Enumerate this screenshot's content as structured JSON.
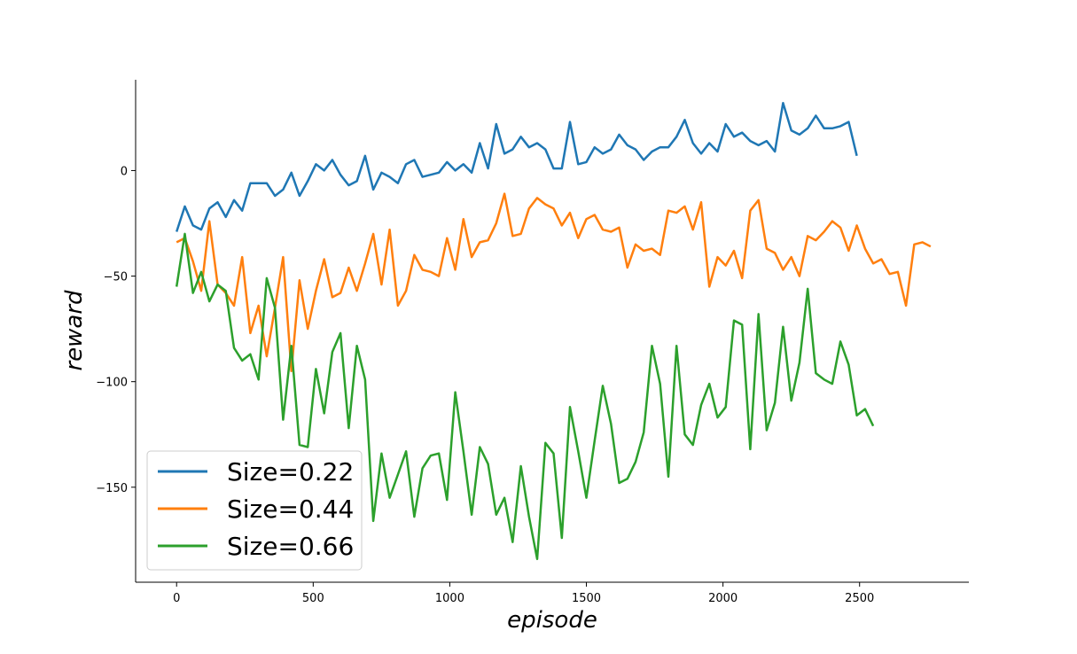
{
  "chart_data": {
    "type": "line",
    "xlabel": "episode",
    "ylabel": "reward",
    "xlim": [
      -150,
      2900
    ],
    "ylim": [
      -195,
      43
    ],
    "xticks": [
      0,
      500,
      1000,
      1500,
      2000,
      2500
    ],
    "yticks": [
      -150,
      -100,
      -50,
      0
    ],
    "grid": false,
    "legend_position": "lower-left",
    "series": [
      {
        "name": "Size=0.22",
        "color": "#1f77b4",
        "x": [
          0,
          30,
          60,
          90,
          120,
          150,
          180,
          210,
          240,
          270,
          300,
          330,
          360,
          390,
          420,
          450,
          480,
          510,
          540,
          570,
          600,
          630,
          660,
          690,
          720,
          750,
          780,
          810,
          840,
          870,
          900,
          930,
          960,
          990,
          1020,
          1050,
          1080,
          1110,
          1140,
          1170,
          1200,
          1230,
          1260,
          1290,
          1320,
          1350,
          1380,
          1410,
          1440,
          1470,
          1500,
          1530,
          1560,
          1590,
          1620,
          1650,
          1680,
          1710,
          1740,
          1770,
          1800,
          1830,
          1860,
          1890,
          1920,
          1950,
          1980,
          2010,
          2040,
          2070,
          2100,
          2130,
          2160,
          2190,
          2220,
          2250,
          2280,
          2310,
          2340,
          2370,
          2400,
          2430,
          2460,
          2490
        ],
        "y": [
          -29,
          -17,
          -26,
          -28,
          -18,
          -15,
          -22,
          -14,
          -19,
          -6,
          -6,
          -6,
          -12,
          -9,
          -1,
          -12,
          -5,
          3,
          0,
          5,
          -2,
          -7,
          -5,
          7,
          -9,
          -1,
          -3,
          -6,
          3,
          5,
          -3,
          -2,
          -1,
          4,
          0,
          3,
          -1,
          13,
          1,
          22,
          8,
          10,
          16,
          11,
          13,
          10,
          1,
          1,
          23,
          3,
          4,
          11,
          8,
          10,
          17,
          12,
          10,
          5,
          9,
          11,
          11,
          16,
          24,
          13,
          8,
          13,
          9,
          22,
          16,
          18,
          14,
          12,
          14,
          9,
          32,
          19,
          17,
          20,
          26,
          20,
          20,
          21,
          23,
          7
        ]
      },
      {
        "name": "Size=0.44",
        "color": "#ff7f0e",
        "x": [
          0,
          30,
          60,
          90,
          120,
          150,
          180,
          210,
          240,
          270,
          300,
          330,
          360,
          390,
          420,
          450,
          480,
          510,
          540,
          570,
          600,
          630,
          660,
          690,
          720,
          750,
          780,
          810,
          840,
          870,
          900,
          930,
          960,
          990,
          1020,
          1050,
          1080,
          1110,
          1140,
          1170,
          1200,
          1230,
          1260,
          1290,
          1320,
          1350,
          1380,
          1410,
          1440,
          1470,
          1500,
          1530,
          1560,
          1590,
          1620,
          1650,
          1680,
          1710,
          1740,
          1770,
          1800,
          1830,
          1860,
          1890,
          1920,
          1950,
          1980,
          2010,
          2040,
          2070,
          2100,
          2130,
          2160,
          2190,
          2220,
          2250,
          2280,
          2310,
          2340,
          2370,
          2400,
          2430,
          2460,
          2490,
          2520,
          2550,
          2580,
          2610,
          2640,
          2670,
          2700,
          2730,
          2760
        ],
        "y": [
          -34,
          -32,
          -43,
          -57,
          -24,
          -54,
          -58,
          -64,
          -41,
          -77,
          -64,
          -88,
          -65,
          -41,
          -95,
          -52,
          -75,
          -57,
          -42,
          -60,
          -58,
          -46,
          -57,
          -44,
          -30,
          -54,
          -28,
          -64,
          -57,
          -40,
          -47,
          -48,
          -50,
          -32,
          -47,
          -23,
          -41,
          -34,
          -33,
          -25,
          -11,
          -31,
          -30,
          -18,
          -13,
          -16,
          -18,
          -26,
          -20,
          -32,
          -23,
          -21,
          -28,
          -29,
          -27,
          -46,
          -35,
          -38,
          -37,
          -40,
          -19,
          -20,
          -17,
          -28,
          -15,
          -55,
          -41,
          -45,
          -38,
          -51,
          -19,
          -14,
          -37,
          -39,
          -47,
          -41,
          -50,
          -31,
          -33,
          -29,
          -24,
          -27,
          -38,
          -26,
          -37,
          -44,
          -42,
          -49,
          -48,
          -64,
          -35,
          -34,
          -36
        ]
      },
      {
        "name": "Size=0.66",
        "color": "#2ca02c",
        "x": [
          0,
          30,
          60,
          90,
          120,
          150,
          180,
          210,
          240,
          270,
          300,
          330,
          360,
          390,
          420,
          450,
          480,
          510,
          540,
          570,
          600,
          630,
          660,
          690,
          720,
          750,
          780,
          810,
          840,
          870,
          900,
          930,
          960,
          990,
          1020,
          1050,
          1080,
          1110,
          1140,
          1170,
          1200,
          1230,
          1260,
          1290,
          1320,
          1350,
          1380,
          1410,
          1440,
          1470,
          1500,
          1530,
          1560,
          1590,
          1620,
          1650,
          1680,
          1710,
          1740,
          1770,
          1800,
          1830,
          1860,
          1890,
          1920,
          1950,
          1980,
          2010,
          2040,
          2070,
          2100,
          2130,
          2160,
          2190,
          2220,
          2250,
          2280,
          2310,
          2340,
          2370,
          2400,
          2430,
          2460,
          2490,
          2520,
          2550
        ],
        "y": [
          -55,
          -30,
          -58,
          -48,
          -62,
          -54,
          -57,
          -84,
          -90,
          -87,
          -99,
          -51,
          -65,
          -118,
          -83,
          -130,
          -131,
          -94,
          -115,
          -86,
          -77,
          -122,
          -83,
          -99,
          -166,
          -134,
          -155,
          -144,
          -133,
          -164,
          -141,
          -135,
          -134,
          -156,
          -105,
          -133,
          -163,
          -131,
          -139,
          -163,
          -155,
          -176,
          -140,
          -164,
          -184,
          -129,
          -134,
          -174,
          -112,
          -133,
          -155,
          -128,
          -102,
          -120,
          -148,
          -146,
          -138,
          -124,
          -83,
          -101,
          -145,
          -83,
          -125,
          -130,
          -111,
          -101,
          -117,
          -112,
          -71,
          -73,
          -132,
          -68,
          -123,
          -110,
          -74,
          -109,
          -91,
          -56,
          -96,
          -99,
          -101,
          -81,
          -92,
          -116,
          -113,
          -121
        ]
      }
    ]
  }
}
